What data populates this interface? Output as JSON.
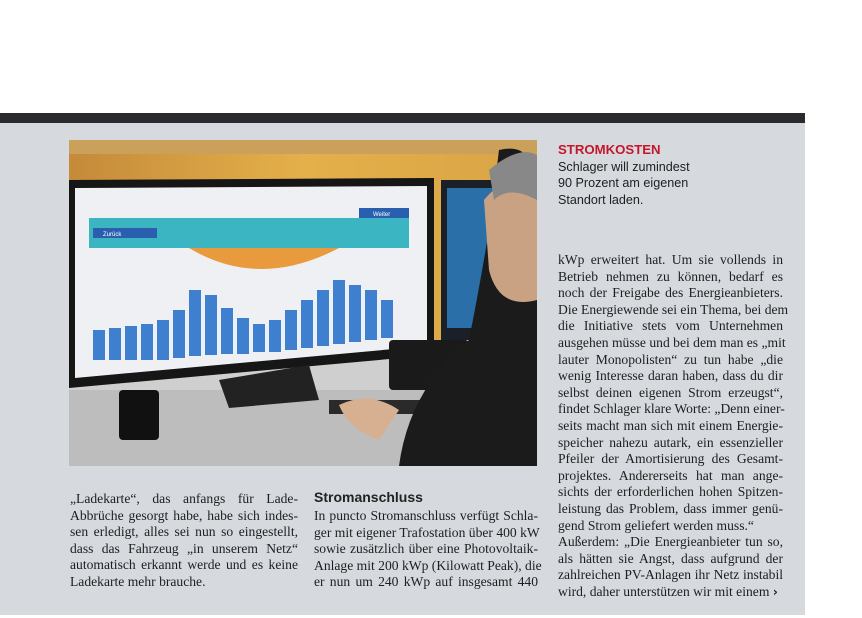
{
  "caption": {
    "kicker": "STROMKOSTEN",
    "lines": [
      "Schlager will zumindest",
      "90 Prozent am eigenen",
      "Standort laden."
    ]
  },
  "photo": {
    "screen_buttons": [
      "Zurück",
      "Weiter"
    ]
  },
  "column1": {
    "lines": [
      "„Ladekarte“, das anfangs für Lade-",
      "Abbrüche gesorgt habe, habe sich indes-",
      "sen erledigt, alles sei nun so eingestellt,",
      "dass das Fahrzeug „in unserem Netz“",
      "automatisch erkannt werde und es keine",
      "Ladekarte mehr brauche."
    ]
  },
  "column2": {
    "heading": "Stromanschluss",
    "lines": [
      "In puncto Stromanschluss verfügt Schla-",
      "ger mit eigener Trafostation über 400 kW",
      "sowie zusätzlich über eine Photovoltaik-",
      "Anlage mit 200 kWp (Kilowatt Peak), die",
      "er nun um 240 kWp auf insgesamt 440"
    ]
  },
  "column3": {
    "lines": [
      "kWp erweitert hat. Um sie vollends in",
      "Betrieb nehmen zu können, bedarf es",
      "noch der Freigabe des Energieanbieters.",
      "Die Energiewende sei ein Thema, bei dem",
      "die Initiative stets vom Unternehmen",
      "ausgehen müsse und bei dem man es „mit",
      "lauter Monopolisten“ zu tun habe „die",
      "wenig Interesse daran haben, dass du dir",
      "selbst deinen eigenen Strom erzeugst“,",
      "findet Schlager klare Worte: „Denn einer-",
      "seits macht man sich mit einem Energie-",
      "speicher nahezu autark, ein essenzieller",
      "Pfeiler der Amortisierung des Gesamt-",
      "projektes. Andererseits hat man ange-",
      "sichts der erforderlichen hohen Spitzen-",
      "leistung das Problem, dass immer genü-",
      "gend Strom geliefert werden muss.“",
      "Außerdem: „Die Energieanbieter tun so,",
      "als hätten sie Angst, dass aufgrund der",
      "zahlreichen PV-Anlagen ihr Netz instabil",
      "wird, daher unterstützen wir mit einem"
    ],
    "continue_arrow": "›"
  },
  "colors": {
    "kicker": "#c4172c",
    "page_bg": "#d6d9de",
    "top_bar": "#2b2b2d"
  }
}
